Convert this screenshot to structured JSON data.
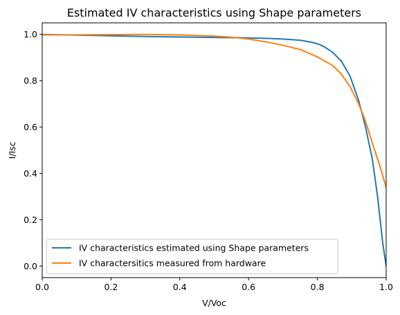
{
  "chart_data": {
    "type": "line",
    "title": "Estimated IV characteristics using Shape parameters",
    "xlabel": "V/Voc",
    "ylabel": "I/Isc",
    "xlim": [
      0.0,
      1.0
    ],
    "ylim": [
      -0.05,
      1.05
    ],
    "xticks": [
      "0.0",
      "0.2",
      "0.4",
      "0.6",
      "0.8",
      "1.0"
    ],
    "xtick_values": [
      0.0,
      0.2,
      0.4,
      0.6,
      0.8,
      1.0
    ],
    "yticks": [
      "0.0",
      "0.2",
      "0.4",
      "0.6",
      "0.8",
      "1.0"
    ],
    "ytick_values": [
      0.0,
      0.2,
      0.4,
      0.6,
      0.8,
      1.0
    ],
    "grid": false,
    "legend_position": "lower-left",
    "series": [
      {
        "name": "IV characteristics estimated using Shape parameters",
        "color": "#1f77b4",
        "x": [
          0.0,
          0.1,
          0.2,
          0.3,
          0.4,
          0.5,
          0.6,
          0.65,
          0.7,
          0.75,
          0.78,
          0.8,
          0.82,
          0.845,
          0.87,
          0.895,
          0.92,
          0.94,
          0.96,
          0.975,
          0.99,
          1.0
        ],
        "y": [
          1.0,
          0.997,
          0.994,
          0.991,
          0.989,
          0.987,
          0.985,
          0.983,
          0.98,
          0.975,
          0.967,
          0.96,
          0.947,
          0.922,
          0.884,
          0.82,
          0.715,
          0.6,
          0.46,
          0.3,
          0.1,
          0.0
        ]
      },
      {
        "name": "IV charactersitics measured from hardware",
        "color": "#ff7f0e",
        "x": [
          0.0,
          0.1,
          0.2,
          0.3,
          0.4,
          0.5,
          0.55,
          0.6,
          0.65,
          0.7,
          0.75,
          0.8,
          0.845,
          0.87,
          0.895,
          0.92,
          0.94,
          0.96,
          0.98,
          1.0
        ],
        "y": [
          0.998,
          0.998,
          0.999,
          1.0,
          0.998,
          0.993,
          0.988,
          0.98,
          0.968,
          0.953,
          0.935,
          0.903,
          0.865,
          0.828,
          0.775,
          0.7,
          0.625,
          0.53,
          0.44,
          0.34
        ]
      }
    ]
  }
}
